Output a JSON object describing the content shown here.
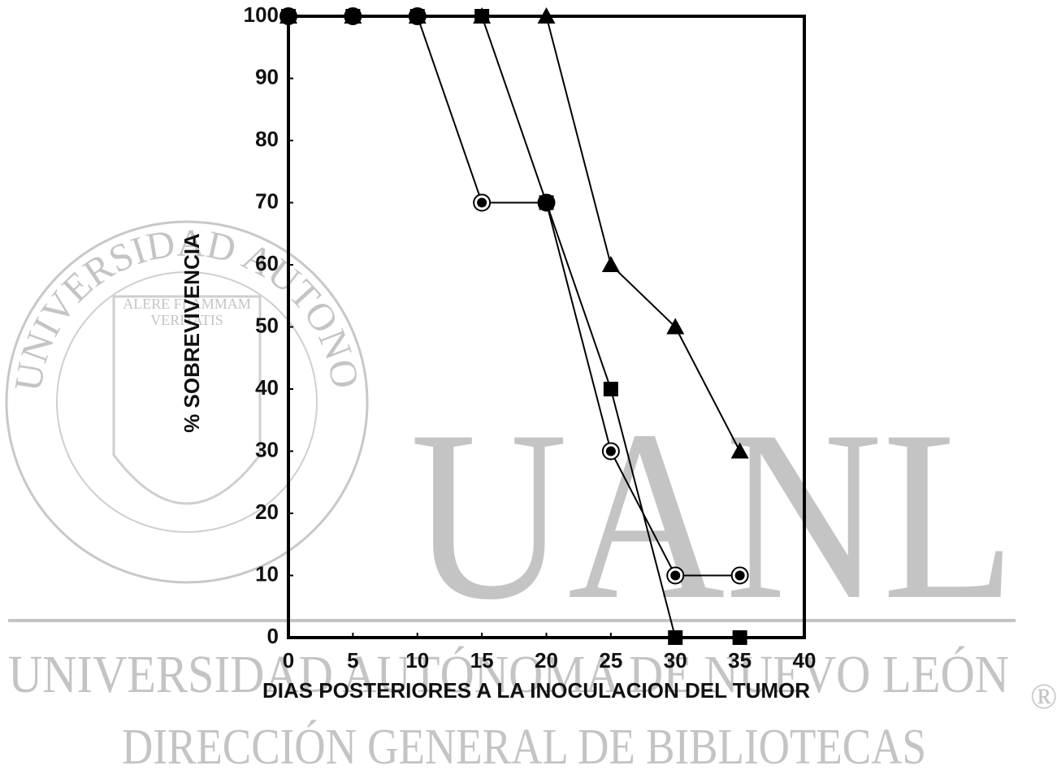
{
  "chart_data": {
    "type": "line",
    "x_label": "DIAS POSTERIORES A LA INOCULACION DEL TUMOR",
    "y_label": "% SOBREVIVENCIA",
    "x": [
      0,
      5,
      10,
      15,
      20,
      25,
      30,
      35
    ],
    "series": [
      {
        "marker": "circle",
        "color": "#000000",
        "values": [
          100,
          100,
          100,
          70,
          70,
          30,
          10,
          10
        ]
      },
      {
        "marker": "square",
        "color": "#000000",
        "values": [
          100,
          100,
          100,
          100,
          70,
          40,
          0,
          0
        ]
      },
      {
        "marker": "triangle",
        "color": "#000000",
        "values": [
          100,
          100,
          100,
          100,
          100,
          60,
          50,
          30
        ]
      }
    ],
    "xlim": [
      0,
      40
    ],
    "xticks": [
      0,
      5,
      10,
      15,
      20,
      25,
      30,
      35,
      40
    ],
    "ylim": [
      0,
      100
    ],
    "yticks": [
      0,
      10,
      20,
      30,
      40,
      50,
      60,
      70,
      80,
      90,
      100
    ],
    "grid": false
  },
  "watermark": {
    "big": "UANL",
    "line1": "UNIVERSIDAD AUTÓNOMA DE NUEVO LEÓN",
    "line2": "DIRECCIÓN GENERAL DE BIBLIOTECAS",
    "mark": "®",
    "seal_ring": "UNIVERSIDAD AUTONOMA DE NUEVO LEON",
    "seal_motto1": "ALERE FLAMMAM",
    "seal_motto2": "VERITATIS"
  }
}
